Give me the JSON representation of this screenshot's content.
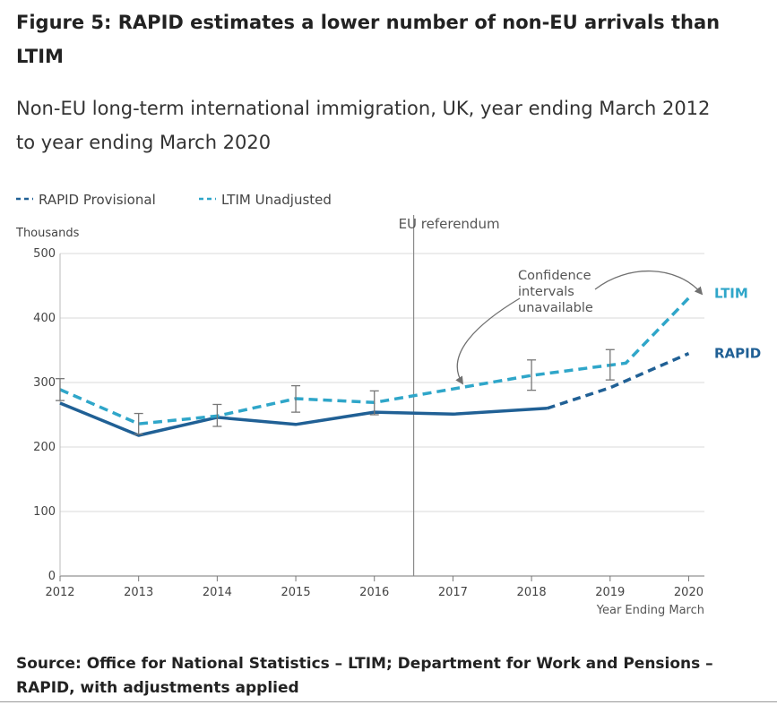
{
  "figure": {
    "title": "Figure 5: RAPID estimates a lower number of non-EU arrivals than LTIM",
    "subtitle": "Non-EU long-term international immigration, UK, year ending March 2012 to year ending March 2020",
    "source": "Source: Office for National Statistics – LTIM; Department for Work and Pensions – RAPID, with adjustments applied"
  },
  "chart_data": {
    "type": "line",
    "x": [
      2012,
      2013,
      2014,
      2015,
      2016,
      2017,
      2018,
      2019,
      2020
    ],
    "xlim": [
      2012,
      2020.2
    ],
    "xticks": [
      2012,
      2013,
      2014,
      2015,
      2016,
      2017,
      2018,
      2019,
      2020
    ],
    "ylim": [
      0,
      500
    ],
    "yticks": [
      0,
      100,
      200,
      300,
      400,
      500
    ],
    "ylabel": "Thousands",
    "xlabel": "Year Ending March",
    "grid": true,
    "series": [
      {
        "name": "LTIM Unadjusted",
        "end_label": "LTIM",
        "color": "#2fa6c9",
        "x": [
          2012,
          2013,
          2014,
          2015,
          2016,
          2017,
          2018,
          2019,
          2019.2,
          2020
        ],
        "values": [
          289,
          236,
          248,
          275,
          269,
          290,
          311,
          327,
          330,
          431
        ],
        "error_bars": [
          {
            "x": 2012,
            "low": 272,
            "high": 306
          },
          {
            "x": 2013,
            "low": 220,
            "high": 252
          },
          {
            "x": 2014,
            "low": 232,
            "high": 266
          },
          {
            "x": 2015,
            "low": 254,
            "high": 295
          },
          {
            "x": 2016,
            "low": 250,
            "high": 287
          },
          {
            "x": 2018,
            "low": 288,
            "high": 335
          },
          {
            "x": 2019,
            "low": 304,
            "high": 351
          }
        ]
      },
      {
        "name": "RAPID Provisional",
        "end_label": "RAPID",
        "color": "#206095",
        "x": [
          2012,
          2013,
          2014,
          2015,
          2016,
          2017,
          2018.2,
          2019,
          2020
        ],
        "values": [
          268,
          218,
          246,
          235,
          254,
          251,
          260,
          292,
          345
        ],
        "solid_until_x": 2018.2
      }
    ],
    "annotations": [
      {
        "text": "EU referendum",
        "type": "vertical-line",
        "x": 2016.5
      },
      {
        "text_lines": [
          "Confidence",
          "intervals",
          "unavailable"
        ],
        "type": "callout"
      }
    ]
  }
}
